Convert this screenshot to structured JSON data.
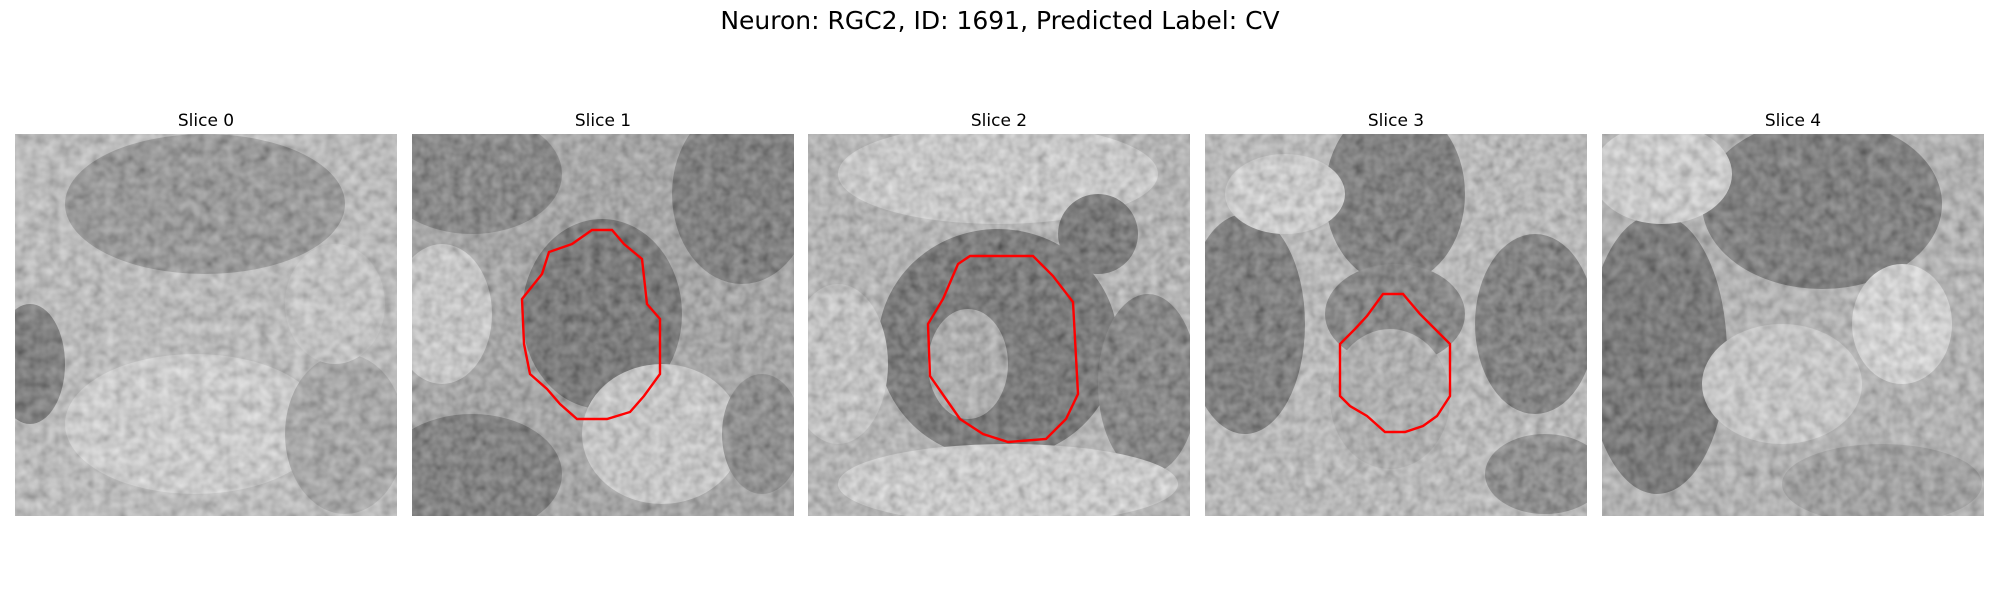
{
  "figure": {
    "title": "Neuron: RGC2, ID: 1691, Predicted Label: CV",
    "contour_color": "#ff0000"
  },
  "slices": [
    {
      "title": "Slice 0",
      "contour": null
    },
    {
      "title": "Slice 1",
      "contour": "ring"
    },
    {
      "title": "Slice 2",
      "contour": "ring"
    },
    {
      "title": "Slice 3",
      "contour": "ring"
    },
    {
      "title": "Slice 4",
      "contour": null
    }
  ]
}
